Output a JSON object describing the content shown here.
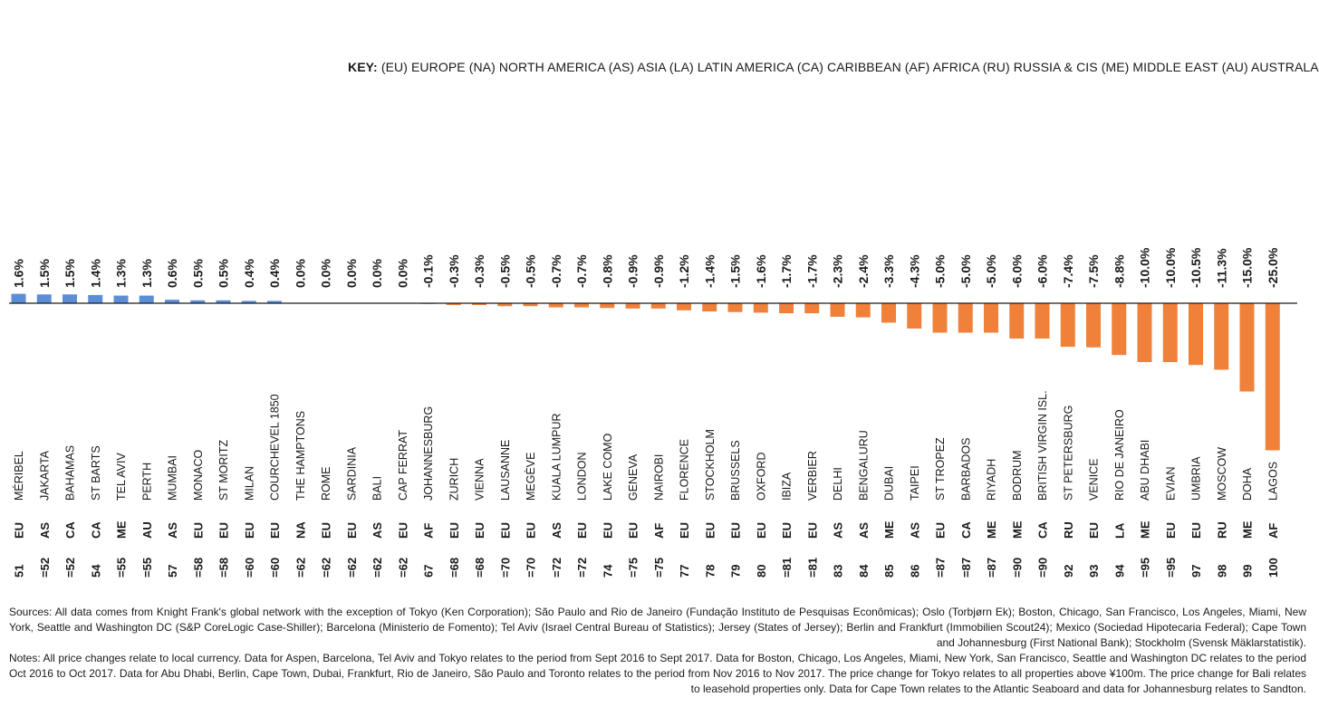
{
  "key": {
    "label": "KEY:",
    "text": "(EU) EUROPE  (NA) NORTH AMERICA  (AS) ASIA  (LA) LATIN AMERICA  (CA) CARIBBEAN  (AF) AFRICA  (RU) RUSSIA & CIS  (ME) MIDDLE EAST  (AU) AUSTRALASIA"
  },
  "colors": {
    "positive": "#5b8ed6",
    "negative": "#f0813a",
    "axis": "#1a1a1a",
    "text": "#1a1a1a"
  },
  "chart_data": {
    "type": "bar",
    "categories": [
      "MÉRIBEL",
      "JAKARTA",
      "BAHAMAS",
      "ST BARTS",
      "TEL AVIV",
      "PERTH",
      "MUMBAI",
      "MONACO",
      "ST MORITZ",
      "MILAN",
      "COURCHEVEL 1850",
      "THE HAMPTONS",
      "ROME",
      "SARDINIA",
      "BALI",
      "CAP FERRAT",
      "JOHANNESBURG",
      "ZURICH",
      "VIENNA",
      "LAUSANNE",
      "MEGÈVE",
      "KUALA LUMPUR",
      "LONDON",
      "LAKE COMO",
      "GENEVA",
      "NAIROBI",
      "FLORENCE",
      "STOCKHOLM",
      "BRUSSELS",
      "OXFORD",
      "IBIZA",
      "VERBIER",
      "DELHI",
      "BENGALURU",
      "DUBAI",
      "TAIPEI",
      "ST TROPEZ",
      "BARBADOS",
      "RIYADH",
      "BODRUM",
      "BRITISH VIRGIN ISL.",
      "ST PETERSBURG",
      "VENICE",
      "RIO DE JANEIRO",
      "ABU DHABI",
      "EVIAN",
      "UMBRIA",
      "MOSCOW",
      "DOHA",
      "LAGOS"
    ],
    "regions": [
      "EU",
      "AS",
      "CA",
      "CA",
      "ME",
      "AU",
      "AS",
      "EU",
      "EU",
      "EU",
      "EU",
      "NA",
      "EU",
      "EU",
      "AS",
      "EU",
      "AF",
      "EU",
      "EU",
      "EU",
      "EU",
      "AS",
      "EU",
      "EU",
      "EU",
      "AF",
      "EU",
      "EU",
      "EU",
      "EU",
      "EU",
      "EU",
      "AS",
      "AS",
      "ME",
      "AS",
      "EU",
      "CA",
      "ME",
      "ME",
      "CA",
      "RU",
      "EU",
      "LA",
      "ME",
      "EU",
      "EU",
      "RU",
      "ME",
      "AF"
    ],
    "ranks": [
      "51",
      "=52",
      "=52",
      "54",
      "=55",
      "=55",
      "57",
      "=58",
      "=58",
      "=60",
      "=60",
      "=62",
      "=62",
      "=62",
      "=62",
      "=62",
      "67",
      "=68",
      "=68",
      "=70",
      "=70",
      "=72",
      "=72",
      "74",
      "=75",
      "=75",
      "77",
      "78",
      "79",
      "80",
      "=81",
      "=81",
      "83",
      "84",
      "85",
      "86",
      "=87",
      "=87",
      "=87",
      "=90",
      "=90",
      "92",
      "93",
      "94",
      "=95",
      "=95",
      "97",
      "98",
      "99",
      "100"
    ],
    "values": [
      1.6,
      1.5,
      1.5,
      1.4,
      1.3,
      1.3,
      0.6,
      0.5,
      0.5,
      0.4,
      0.4,
      0.0,
      0.0,
      0.0,
      0.0,
      0.0,
      -0.1,
      -0.3,
      -0.3,
      -0.5,
      -0.5,
      -0.7,
      -0.7,
      -0.8,
      -0.9,
      -0.9,
      -1.2,
      -1.4,
      -1.5,
      -1.6,
      -1.7,
      -1.7,
      -2.3,
      -2.4,
      -3.3,
      -4.3,
      -5.0,
      -5.0,
      -5.0,
      -6.0,
      -6.0,
      -7.4,
      -7.5,
      -8.8,
      -10.0,
      -10.0,
      -10.5,
      -11.3,
      -15.0,
      -25.0
    ],
    "value_labels": [
      "1.6%",
      "1.5%",
      "1.5%",
      "1.4%",
      "1.3%",
      "1.3%",
      "0.6%",
      "0.5%",
      "0.5%",
      "0.4%",
      "0.4%",
      "0.0%",
      "0.0%",
      "0.0%",
      "0.0%",
      "0.0%",
      "-0.1%",
      "-0.3%",
      "-0.3%",
      "-0.5%",
      "-0.5%",
      "-0.7%",
      "-0.7%",
      "-0.8%",
      "-0.9%",
      "-0.9%",
      "-1.2%",
      "-1.4%",
      "-1.5%",
      "-1.6%",
      "-1.7%",
      "-1.7%",
      "-2.3%",
      "-2.4%",
      "-3.3%",
      "-4.3%",
      "-5.0%",
      "-5.0%",
      "-5.0%",
      "-6.0%",
      "-6.0%",
      "-7.4%",
      "-7.5%",
      "-8.8%",
      "-10.0%",
      "-10.0%",
      "-10.5%",
      "-11.3%",
      "-15.0%",
      "-25.0%"
    ],
    "ylim": [
      -25,
      1.6
    ],
    "grid": false,
    "legend": "top-right"
  },
  "footnotes": {
    "sources": "Sources: All data comes from Knight Frank's global network with the exception of Tokyo (Ken Corporation); São Paulo and Rio de Janeiro (Fundação Instituto de Pesquisas Econômicas); Oslo (Torbjørn Ek); Boston, Chicago, San Francisco, Los Angeles, Miami, New York, Seattle and Washington DC (S&P CoreLogic Case-Shiller); Barcelona (Ministerio de Fomento); Tel Aviv (Israel Central Bureau of Statistics); Jersey (States of Jersey); Berlin and Frankfurt (Immobilien Scout24); Mexico (Sociedad Hipotecaria Federal); Cape Town and Johannesburg (First National Bank); Stockholm (Svensk Mäklarstatistik).",
    "notes": "Notes: All price changes relate to local currency. Data for Aspen, Barcelona, Tel Aviv and Tokyo relates to the period from Sept 2016 to Sept 2017. Data for Boston, Chicago, Los Angeles, Miami, New York, San Francisco, Seattle and Washington DC relates to the period Oct 2016 to Oct 2017. Data for Abu Dhabi, Berlin, Cape Town, Dubai, Frankfurt, Rio de Janeiro, São Paulo and Toronto relates to the period from Nov 2016 to Nov 2017. The price change for Tokyo relates to all properties above ¥100m. The price change for Bali relates to leasehold properties only. Data for Cape Town relates to the Atlantic Seaboard and data for Johannesburg relates to Sandton."
  }
}
